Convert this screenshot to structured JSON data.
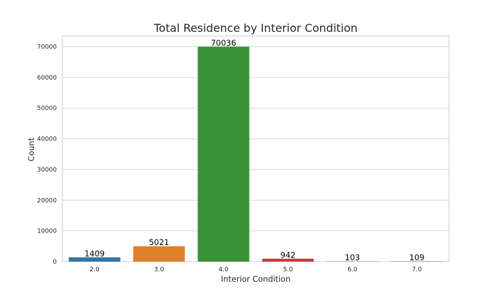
{
  "chart_data": {
    "type": "bar",
    "title": "Total Residence by Interior Condition",
    "xlabel": "Interior Condition",
    "ylabel": "Count",
    "categories": [
      "2.0",
      "3.0",
      "4.0",
      "5.0",
      "6.0",
      "7.0"
    ],
    "values": [
      1409,
      5021,
      70036,
      942,
      103,
      109
    ],
    "data_labels": [
      "1409",
      "5021",
      "70036",
      "942",
      "103",
      "109"
    ],
    "colors": [
      "#3274a1",
      "#e1812c",
      "#3a923a",
      "#c03d3e",
      "#9372b2",
      "#845b53"
    ],
    "ylim": [
      0,
      73500
    ],
    "yticks": [
      0,
      10000,
      20000,
      30000,
      40000,
      50000,
      60000,
      70000
    ],
    "ytick_labels": [
      "0",
      "10000",
      "20000",
      "30000",
      "40000",
      "50000",
      "60000",
      "70000"
    ],
    "grid": true
  }
}
